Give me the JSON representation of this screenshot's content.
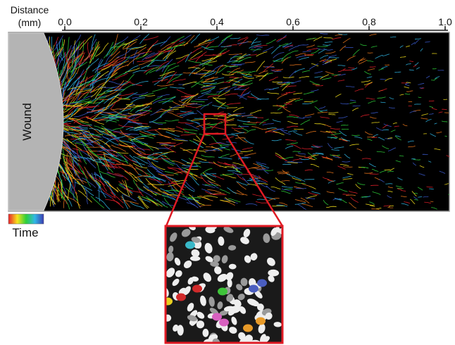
{
  "axis": {
    "label": [
      "Distance",
      "(mm)"
    ],
    "ticks": [
      "0.0",
      "0.2",
      "0.4",
      "0.6",
      "0.8",
      "1.0"
    ]
  },
  "wound_label": "Wound",
  "legend": {
    "label": "Time"
  }
}
